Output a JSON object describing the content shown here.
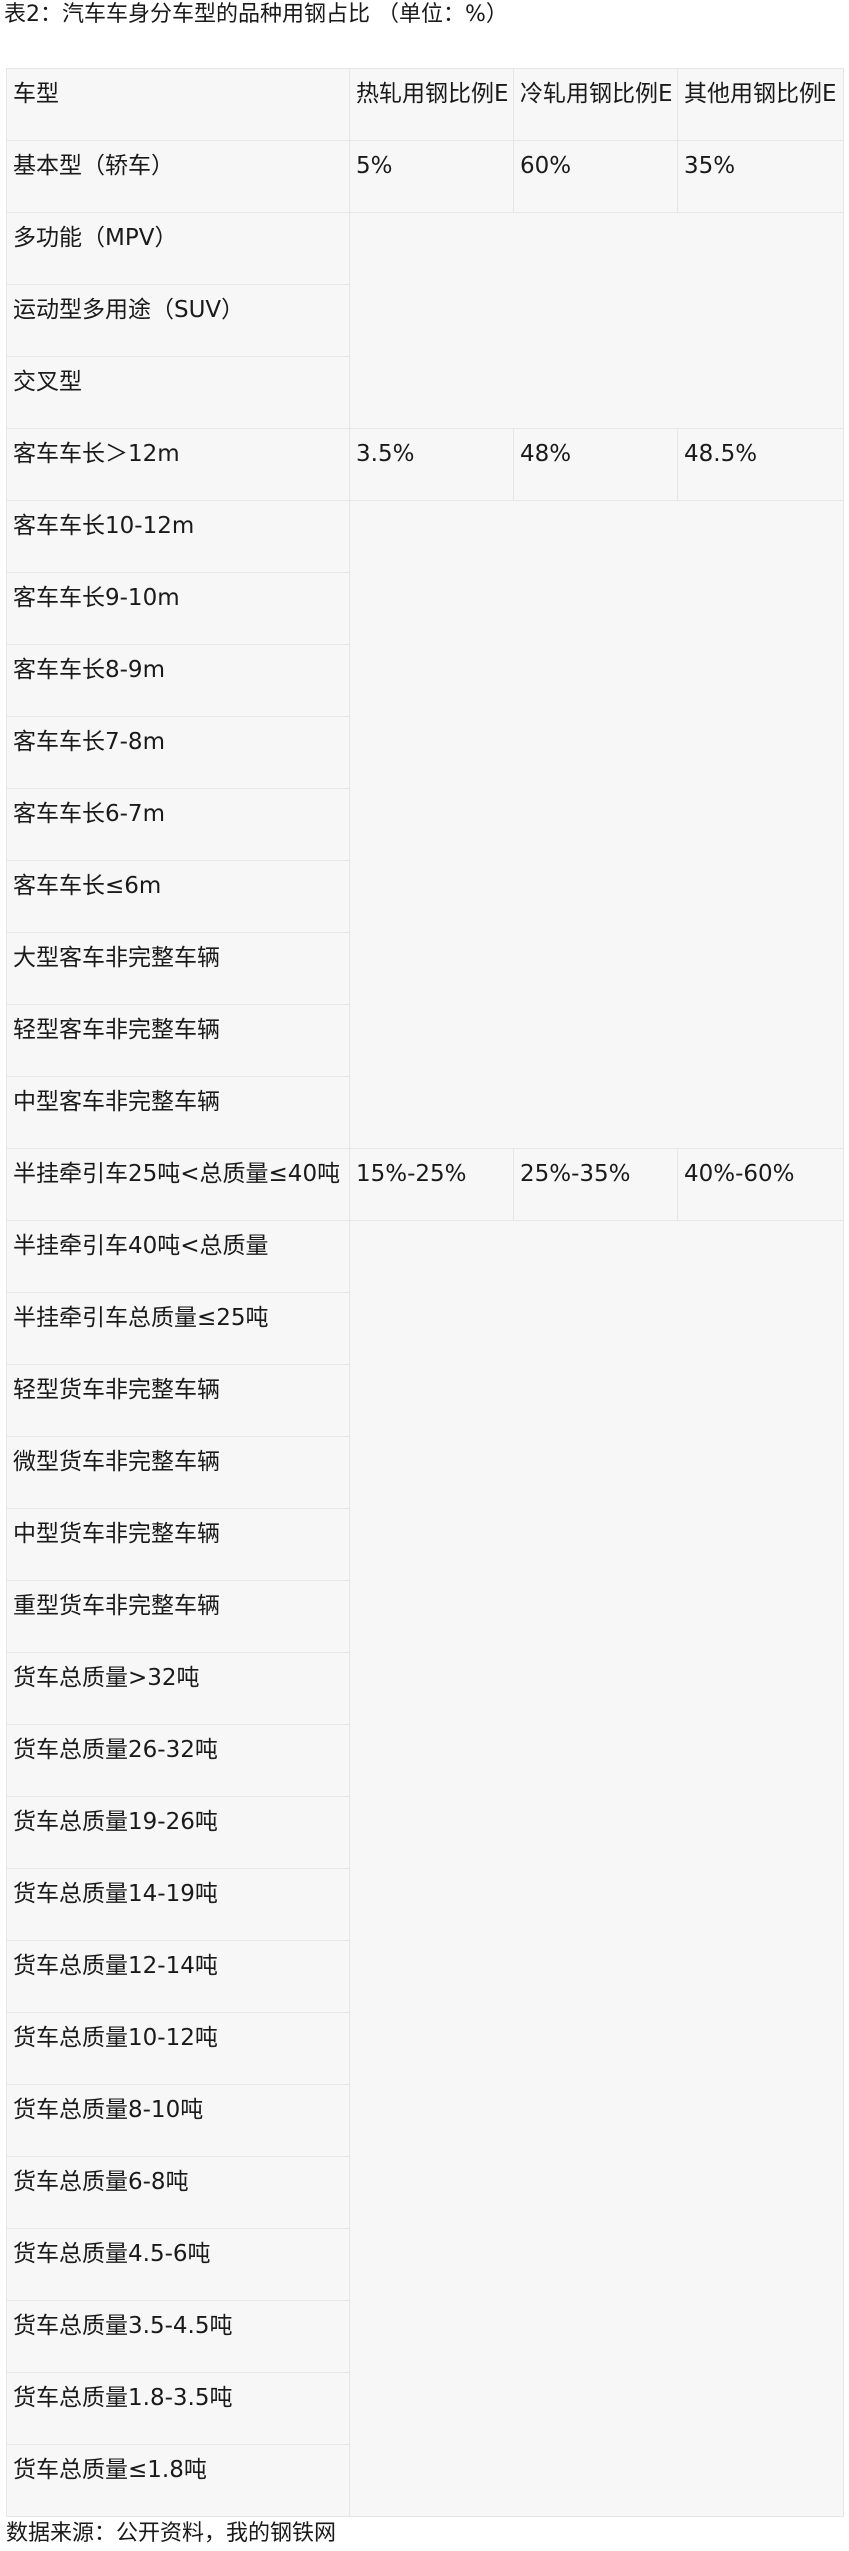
{
  "title": "表2：汽车车身分车型的品种用钢占比 （单位：%）",
  "table": {
    "header": [
      "车型",
      "热轧用钢比例E",
      "冷轧用钢比例E",
      "其他用钢比例E"
    ],
    "groups": [
      {
        "values": [
          "5%",
          "60%",
          "35%"
        ],
        "rows": [
          "基本型（轿车）",
          "多功能（MPV）",
          "运动型多用途（SUV）",
          "交叉型"
        ]
      },
      {
        "values": [
          "3.5%",
          "48%",
          "48.5%"
        ],
        "rows": [
          "客车车长＞12m",
          "客车车长10-12m",
          "客车车长9-10m",
          "客车车长8-9m",
          "客车车长7-8m",
          "客车车长6-7m",
          "客车车长≤6m",
          "大型客车非完整车辆",
          "轻型客车非完整车辆",
          "中型客车非完整车辆"
        ]
      },
      {
        "values": [
          "15%-25%",
          "25%-35%",
          "40%-60%"
        ],
        "rows": [
          "半挂牵引车25吨<总质量≤40吨",
          "半挂牵引车40吨<总质量",
          "半挂牵引车总质量≤25吨",
          "轻型货车非完整车辆",
          "微型货车非完整车辆",
          "中型货车非完整车辆",
          "重型货车非完整车辆",
          "货车总质量>32吨",
          "货车总质量26-32吨",
          "货车总质量19-26吨",
          "货车总质量14-19吨",
          "货车总质量12-14吨",
          "货车总质量10-12吨",
          "货车总质量8-10吨",
          "货车总质量6-8吨",
          "货车总质量4.5-6吨",
          "货车总质量3.5-4.5吨",
          "货车总质量1.8-3.5吨",
          "货车总质量≤1.8吨"
        ]
      }
    ]
  },
  "source": "数据来源：公开资料，我的钢铁网"
}
